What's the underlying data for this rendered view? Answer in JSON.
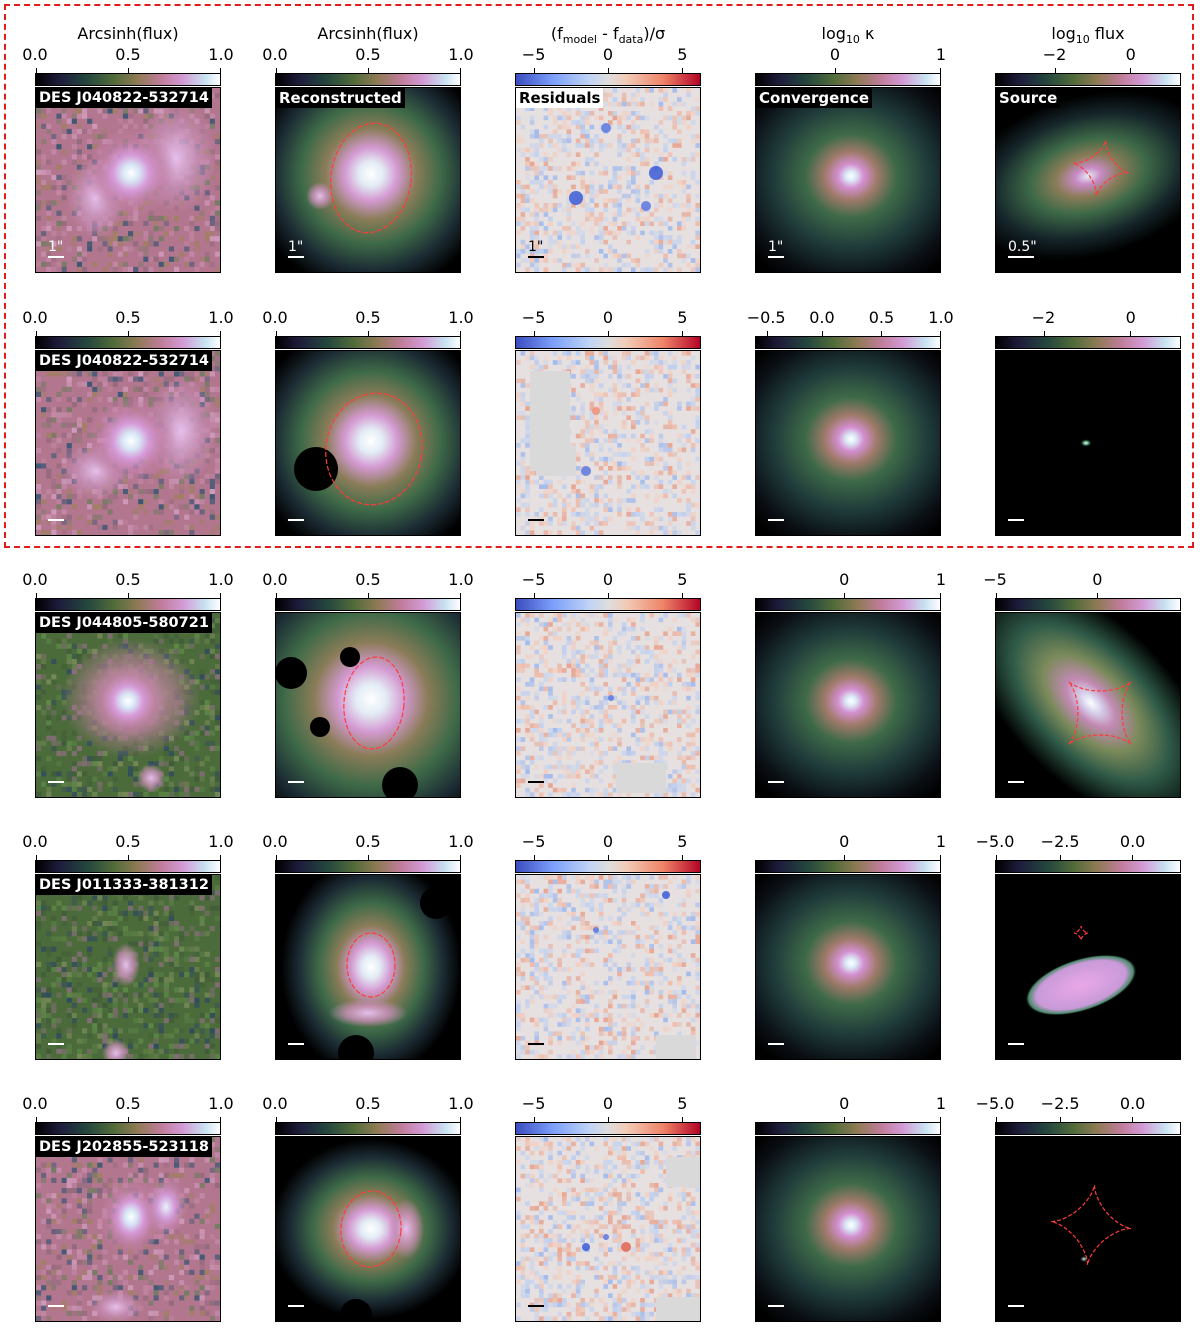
{
  "figure": {
    "column_titles": [
      "Arcsinh(flux)",
      "Arcsinh(flux)",
      "(f_model - f_data)/σ",
      "log10 κ",
      "log10 flux"
    ],
    "column_titles_parts": {
      "c2": {
        "pre": "(f",
        "sub1": "model",
        "mid": " - f",
        "sub2": "data",
        "post": ")/σ"
      },
      "c3": {
        "pre": "log",
        "sub": "10",
        "post": " κ"
      },
      "c4": {
        "pre": "log",
        "sub": "10",
        "post": " flux"
      }
    },
    "panel_labels": {
      "reconstructed": "Reconstructed",
      "residuals": "Residuals",
      "convergence": "Convergence",
      "source": "Source"
    },
    "scale_bar_labels": [
      "1\"",
      "1\"",
      "1\"",
      "1\"",
      "0.5\""
    ],
    "colors": {
      "highlight_box": "#e21b1b",
      "critical_curve": "#ff3b3b"
    },
    "rows": [
      {
        "object": "DES J040822-532714",
        "ticks": [
          [
            "0.0",
            "0.5",
            "1.0"
          ],
          [
            "0.0",
            "0.5",
            "1.0"
          ],
          [
            "−5",
            "0",
            "5"
          ],
          [
            "0",
            "1"
          ],
          [
            "−2",
            "0"
          ]
        ]
      },
      {
        "object": "DES J040822-532714",
        "ticks": [
          [
            "0.0",
            "0.5",
            "1.0"
          ],
          [
            "0.0",
            "0.5",
            "1.0"
          ],
          [
            "−5",
            "0",
            "5"
          ],
          [
            "−0.5",
            "0.0",
            "0.5",
            "1.0"
          ],
          [
            "−2",
            "0"
          ]
        ]
      },
      {
        "object": "DES J044805-580721",
        "ticks": [
          [
            "0.0",
            "0.5",
            "1.0"
          ],
          [
            "0.0",
            "0.5",
            "1.0"
          ],
          [
            "−5",
            "0",
            "5"
          ],
          [
            "0",
            "1"
          ],
          [
            "−5",
            "0"
          ]
        ]
      },
      {
        "object": "DES J011333-381312",
        "ticks": [
          [
            "0.0",
            "0.5",
            "1.0"
          ],
          [
            "0.0",
            "0.5",
            "1.0"
          ],
          [
            "−5",
            "0",
            "5"
          ],
          [
            "0",
            "1"
          ],
          [
            "−5.0",
            "−2.5",
            "0.0"
          ]
        ]
      },
      {
        "object": "DES J202855-523118",
        "ticks": [
          [
            "0.0",
            "0.5",
            "1.0"
          ],
          [
            "0.0",
            "0.5",
            "1.0"
          ],
          [
            "−5",
            "0",
            "5"
          ],
          [
            "0",
            "1"
          ],
          [
            "−5.0",
            "−2.5",
            "0.0"
          ]
        ]
      }
    ]
  }
}
